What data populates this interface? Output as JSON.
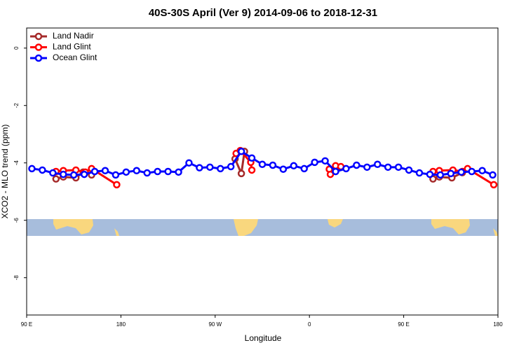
{
  "chart_data": {
    "type": "line",
    "title": "40S-30S April (Ver 9)   2014-09-06 to 2018-12-31",
    "x_label": "Longitude",
    "y_label": "XCO2 - MLO trend (ppm)",
    "xlim": [
      90,
      540
    ],
    "xticks": [
      {
        "value": 90,
        "label": "90 E"
      },
      180,
      {
        "value": 270,
        "label": "90 W"
      },
      {
        "value": 360,
        "label": "0"
      },
      {
        "value": 450,
        "label": "90 E"
      },
      {
        "value": 540,
        "label": "180"
      }
    ],
    "ylim": [
      -9.3,
      0.7
    ],
    "yticks": [
      0,
      -2,
      -4,
      -6,
      -8
    ],
    "legend": "top-left",
    "series": [
      {
        "name": "Land Nadir",
        "color": "#a52a2a",
        "x": [
          118,
          125,
          137,
          144,
          152,
          null,
          289,
          295,
          298,
          null,
          379,
          385,
          null,
          478,
          484,
          496,
          506
        ],
        "values": [
          -4.56,
          -4.49,
          -4.52,
          -4.32,
          -4.42,
          null,
          -3.86,
          -4.37,
          -3.6,
          null,
          -4.22,
          -4.25,
          null,
          -4.56,
          -4.49,
          -4.52,
          -4.34
        ]
      },
      {
        "name": "Land Glint",
        "color": "#ff0000",
        "x": [
          118,
          125,
          137,
          146,
          152,
          176,
          null,
          290,
          294,
          304,
          305,
          null,
          379,
          380,
          385,
          390,
          null,
          478,
          484,
          497,
          506,
          511,
          536
        ],
        "values": [
          -4.3,
          -4.27,
          -4.25,
          -4.32,
          -4.2,
          -4.76,
          null,
          -3.67,
          -3.57,
          -3.98,
          -4.25,
          null,
          -4.22,
          -4.4,
          -4.1,
          -4.13,
          null,
          -4.3,
          -4.27,
          -4.25,
          -4.3,
          -4.2,
          -4.76
        ]
      },
      {
        "name": "Ocean Glint",
        "color": "#0000ff",
        "x": [
          95,
          105,
          115,
          125,
          135,
          145,
          155,
          165,
          175,
          185,
          195,
          205,
          215,
          225,
          235,
          245,
          255,
          265,
          275,
          285,
          295,
          305,
          315,
          325,
          335,
          345,
          355,
          365,
          375,
          385,
          395,
          405,
          415,
          425,
          435,
          445,
          455,
          465,
          475,
          485,
          495,
          505,
          515,
          525,
          535
        ],
        "values": [
          -4.2,
          -4.25,
          -4.35,
          -4.4,
          -4.42,
          -4.4,
          -4.3,
          -4.27,
          -4.42,
          -4.32,
          -4.27,
          -4.35,
          -4.3,
          -4.3,
          -4.32,
          -4.0,
          -4.17,
          -4.15,
          -4.2,
          -4.13,
          -3.6,
          -3.83,
          -4.05,
          -4.08,
          -4.22,
          -4.1,
          -4.2,
          -3.98,
          -3.93,
          -4.3,
          -4.2,
          -4.08,
          -4.15,
          -4.05,
          -4.15,
          -4.15,
          -4.25,
          -4.35,
          -4.4,
          -4.42,
          -4.37,
          -4.32,
          -4.3,
          -4.27,
          -4.42
        ]
      }
    ]
  }
}
